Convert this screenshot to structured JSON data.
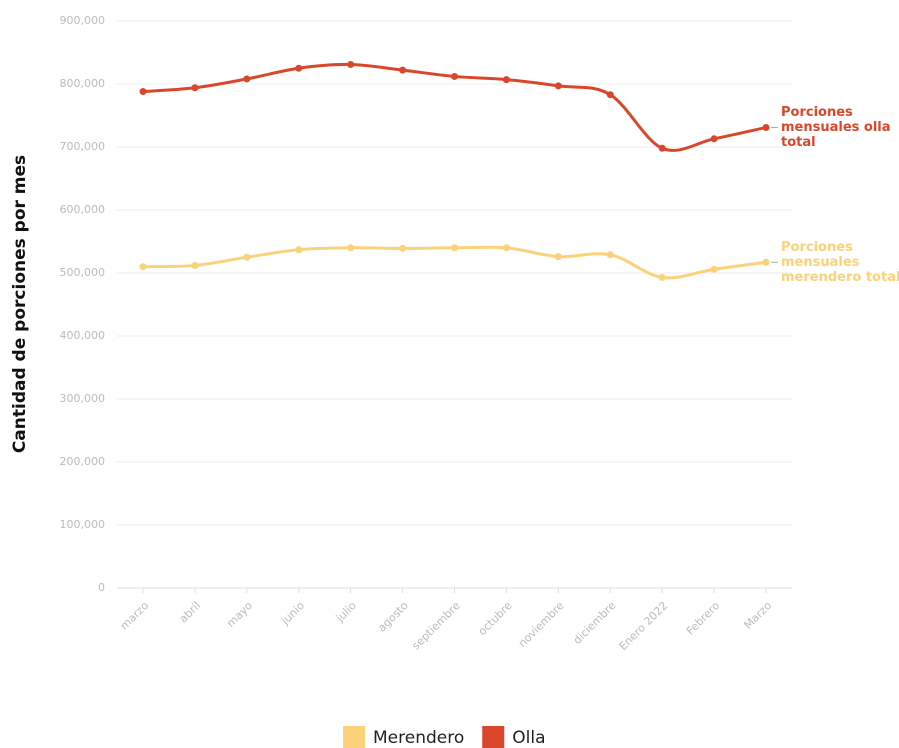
{
  "chart_data": {
    "type": "line",
    "y_label": "Cantidad de porciones por mes",
    "categories": [
      "marzo",
      "abril",
      "mayo",
      "junio",
      "julio",
      "agosto",
      "septiembre",
      "octubre",
      "noviembre",
      "diciembre",
      "Enero 2022",
      "Febrero",
      "Marzo"
    ],
    "series": [
      {
        "name": "Merendero",
        "color": "#fbd27a",
        "values": [
          510000,
          512000,
          525000,
          537000,
          540000,
          539000,
          540000,
          540000,
          526000,
          529000,
          493000,
          506000,
          517000
        ],
        "annotation": [
          "Porciones",
          "mensuales",
          "merendero total"
        ]
      },
      {
        "name": "Olla",
        "color": "#d9472b",
        "values": [
          788000,
          794000,
          808000,
          825000,
          831000,
          822000,
          812000,
          807000,
          797000,
          783000,
          698000,
          713000,
          731000
        ],
        "annotation": [
          "Porciones",
          "mensuales olla",
          "total"
        ]
      }
    ],
    "ylim": [
      0,
      900000
    ],
    "yticks": [
      0,
      {
        "value": 100000,
        "label": "100,000"
      },
      {
        "value": 200000,
        "label": "200,000"
      },
      {
        "value": 300000,
        "label": "300,000"
      },
      {
        "value": 400000,
        "label": "400,000"
      },
      {
        "value": 500000,
        "label": "500,000"
      },
      {
        "value": 600000,
        "label": "600,000"
      },
      {
        "value": 700000,
        "label": "700,000"
      },
      {
        "value": 800000,
        "label": "800,000"
      },
      {
        "value": 900000,
        "label": "900,000"
      }
    ],
    "grid": true,
    "legend": "bottom"
  }
}
